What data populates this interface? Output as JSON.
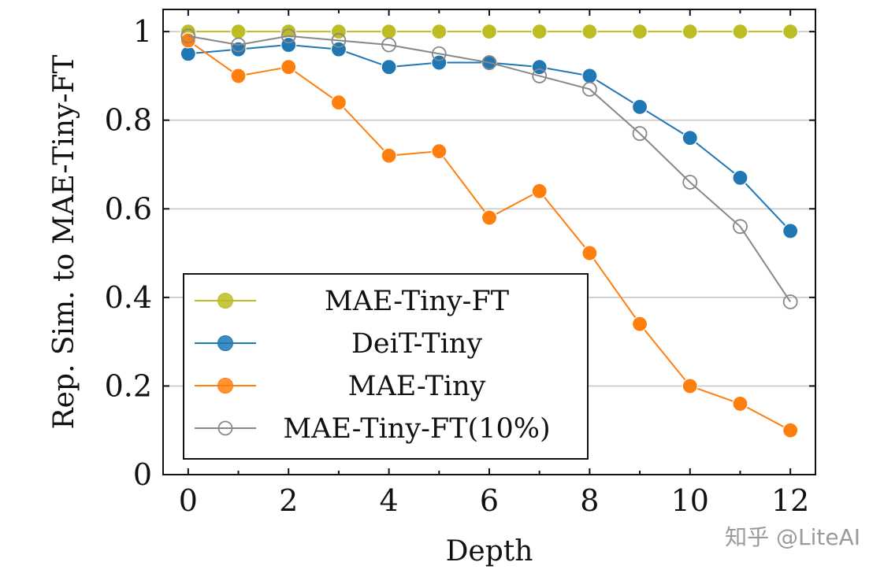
{
  "chart_data": {
    "type": "line",
    "xlabel": "Depth",
    "ylabel": "Rep. Sim. to MAE-Tiny-FT",
    "xlim": [
      -0.5,
      12.5
    ],
    "ylim": [
      0,
      1.05
    ],
    "x": [
      0,
      1,
      2,
      3,
      4,
      5,
      6,
      7,
      8,
      9,
      10,
      11,
      12
    ],
    "xticks": [
      0,
      2,
      4,
      6,
      8,
      10,
      12
    ],
    "xtick_labels": [
      "0",
      "2",
      "4",
      "6",
      "8",
      "10",
      "12"
    ],
    "yticks": [
      0,
      0.2,
      0.4,
      0.6,
      0.8,
      1
    ],
    "ytick_labels": [
      "0",
      "0.2",
      "0.4",
      "0.6",
      "0.8",
      "1"
    ],
    "grid": "horizontal",
    "legend_position": "bottom-left",
    "series": [
      {
        "name": "MAE-Tiny-FT",
        "color": "#bcbd22",
        "marker": "filled-circle",
        "values": [
          1.0,
          1.0,
          1.0,
          1.0,
          1.0,
          1.0,
          1.0,
          1.0,
          1.0,
          1.0,
          1.0,
          1.0,
          1.0
        ]
      },
      {
        "name": "DeiT-Tiny",
        "color": "#1f77b4",
        "marker": "filled-circle",
        "values": [
          0.95,
          0.96,
          0.97,
          0.96,
          0.92,
          0.93,
          0.93,
          0.92,
          0.9,
          0.83,
          0.76,
          0.67,
          0.55
        ]
      },
      {
        "name": "MAE-Tiny",
        "color": "#ff7f0e",
        "marker": "filled-circle",
        "values": [
          0.98,
          0.9,
          0.92,
          0.84,
          0.72,
          0.73,
          0.58,
          0.64,
          0.5,
          0.34,
          0.2,
          0.16,
          0.1
        ]
      },
      {
        "name": "MAE-Tiny-FT(10%)",
        "color": "#888888",
        "marker": "open-circle",
        "values": [
          0.99,
          0.97,
          0.99,
          0.98,
          0.97,
          0.95,
          0.93,
          0.9,
          0.87,
          0.77,
          0.66,
          0.56,
          0.39
        ]
      }
    ]
  },
  "watermark": {
    "text": "知乎 @LiteAI"
  }
}
